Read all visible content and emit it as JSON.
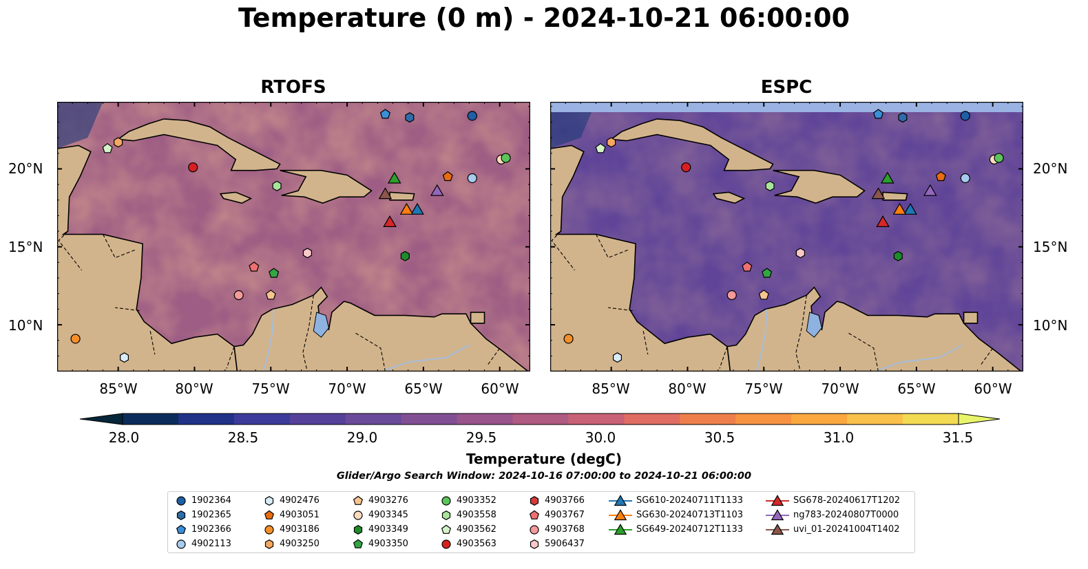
{
  "figure": {
    "title": "Temperature (0 m) - 2024-10-21 06:00:00",
    "search_window": "Glider/Argo Search Window: 2024-10-16 07:00:00 to 2024-10-21 06:00:00"
  },
  "map": {
    "lon_range": [
      -89,
      -58
    ],
    "lat_range": [
      7,
      24.3
    ],
    "lon_ticks": [
      "85°W",
      "80°W",
      "75°W",
      "70°W",
      "65°W",
      "60°W"
    ],
    "lat_ticks": [
      "20°N",
      "15°N",
      "10°N"
    ],
    "colors": {
      "land": "#d2b48c",
      "lake": "#8fb3e0",
      "rivers": "#a6bddb",
      "missing_band": "#9ab3e3"
    }
  },
  "panels": [
    {
      "title": "RTOFS",
      "tint": "#e07a5f",
      "tint_opacity": 0.35
    },
    {
      "title": "ESPC",
      "tint": "#3d3a9a",
      "tint_opacity": 0.45
    }
  ],
  "colorbar": {
    "label": "Temperature (degC)",
    "ticks": [
      "28.0",
      "28.5",
      "29.0",
      "29.5",
      "30.0",
      "30.5",
      "31.0",
      "31.5"
    ],
    "colors": [
      "#06263a",
      "#0c2d5c",
      "#1f3288",
      "#3c3b9b",
      "#55419a",
      "#6a4a9a",
      "#814f94",
      "#98548b",
      "#b05b82",
      "#c86176",
      "#df6d63",
      "#ee7f4c",
      "#f69242",
      "#f9a73e",
      "#f9c04a",
      "#f2db52",
      "#e8f56b"
    ]
  },
  "legend": [
    {
      "label": "1902364",
      "marker": "circle",
      "color": "#1f5fa6"
    },
    {
      "label": "1902365",
      "marker": "hexagon",
      "color": "#2e6da8"
    },
    {
      "label": "1902366",
      "marker": "pentagon",
      "color": "#3b8fd6"
    },
    {
      "label": "4902113",
      "marker": "circle",
      "color": "#a6cbec"
    },
    {
      "label": "4902476",
      "marker": "hexagon",
      "color": "#d9ecf7"
    },
    {
      "label": "4903051",
      "marker": "pentagon",
      "color": "#e86c10"
    },
    {
      "label": "4903186",
      "marker": "circle",
      "color": "#f58f2a"
    },
    {
      "label": "4903250",
      "marker": "hexagon",
      "color": "#f5a861"
    },
    {
      "label": "4903276",
      "marker": "pentagon",
      "color": "#f7c490"
    },
    {
      "label": "4903345",
      "marker": "circle",
      "color": "#fbdcbd"
    },
    {
      "label": "4903349",
      "marker": "hexagon",
      "color": "#1f8a2c"
    },
    {
      "label": "4903350",
      "marker": "pentagon",
      "color": "#33a644"
    },
    {
      "label": "4903352",
      "marker": "circle",
      "color": "#5cc45b"
    },
    {
      "label": "4903558",
      "marker": "hexagon",
      "color": "#a8e49a"
    },
    {
      "label": "4903562",
      "marker": "pentagon",
      "color": "#d4f2c8"
    },
    {
      "label": "4903563",
      "marker": "circle",
      "color": "#d62020"
    },
    {
      "label": "4903766",
      "marker": "hexagon",
      "color": "#d63a3a"
    },
    {
      "label": "4903767",
      "marker": "pentagon",
      "color": "#ee7070"
    },
    {
      "label": "4903768",
      "marker": "circle",
      "color": "#f59a9a"
    },
    {
      "label": "5906437",
      "marker": "hexagon",
      "color": "#fbc8c8"
    },
    {
      "label": "SG610-20240711T1133",
      "marker": "triangle-line",
      "color": "#1f77b4"
    },
    {
      "label": "SG630-20240713T1103",
      "marker": "triangle-line",
      "color": "#ff7f0e"
    },
    {
      "label": "SG649-20240712T1133",
      "marker": "triangle-line",
      "color": "#2ca02c"
    },
    {
      "label": "SG678-20240617T1202",
      "marker": "triangle-line",
      "color": "#d62728"
    },
    {
      "label": "ng783-20240807T0000",
      "marker": "triangle-line",
      "color": "#9467bd"
    },
    {
      "label": "uvi_01-20241004T1402",
      "marker": "triangle-line",
      "color": "#8c564b"
    }
  ],
  "observations": [
    {
      "id": "1902364",
      "lon": -61.8,
      "lat": 23.4
    },
    {
      "id": "1902365",
      "lon": -65.9,
      "lat": 23.3
    },
    {
      "id": "1902366",
      "lon": -67.5,
      "lat": 23.5
    },
    {
      "id": "4902113",
      "lon": -61.8,
      "lat": 19.4
    },
    {
      "id": "4902476",
      "lon": -84.6,
      "lat": 7.9
    },
    {
      "id": "4903051",
      "lon": -63.4,
      "lat": 19.5
    },
    {
      "id": "4903186",
      "lon": -87.8,
      "lat": 9.1
    },
    {
      "id": "4903250",
      "lon": -85.0,
      "lat": 21.7
    },
    {
      "id": "4903276",
      "lon": -75.0,
      "lat": 11.9
    },
    {
      "id": "4903345",
      "lon": -59.9,
      "lat": 20.6
    },
    {
      "id": "4903349",
      "lon": -66.2,
      "lat": 14.4
    },
    {
      "id": "4903350",
      "lon": -74.8,
      "lat": 13.3
    },
    {
      "id": "4903352",
      "lon": -59.6,
      "lat": 20.7
    },
    {
      "id": "4903558",
      "lon": -74.6,
      "lat": 18.9
    },
    {
      "id": "4903562",
      "lon": -85.7,
      "lat": 21.3
    },
    {
      "id": "4903563",
      "lon": -80.1,
      "lat": 20.1
    },
    {
      "id": "4903766",
      "lon": -72.6,
      "lat": 14.6
    },
    {
      "id": "4903767",
      "lon": -76.1,
      "lat": 13.7
    },
    {
      "id": "4903768",
      "lon": -77.1,
      "lat": 11.9
    },
    {
      "id": "5906437",
      "lon": -72.6,
      "lat": 14.6
    }
  ],
  "gliders": [
    {
      "id": "SG610-20240711T1133",
      "lon": -65.4,
      "lat": 17.4
    },
    {
      "id": "SG630-20240713T1103",
      "lon": -66.1,
      "lat": 17.4
    },
    {
      "id": "SG649-20240712T1133",
      "lon": -66.9,
      "lat": 19.4
    },
    {
      "id": "SG678-20240617T1202",
      "lon": -67.2,
      "lat": 16.6
    },
    {
      "id": "ng783-20240807T0000",
      "lon": -64.1,
      "lat": 18.6
    },
    {
      "id": "uvi_01-20241004T1402",
      "lon": -67.5,
      "lat": 18.4
    }
  ]
}
